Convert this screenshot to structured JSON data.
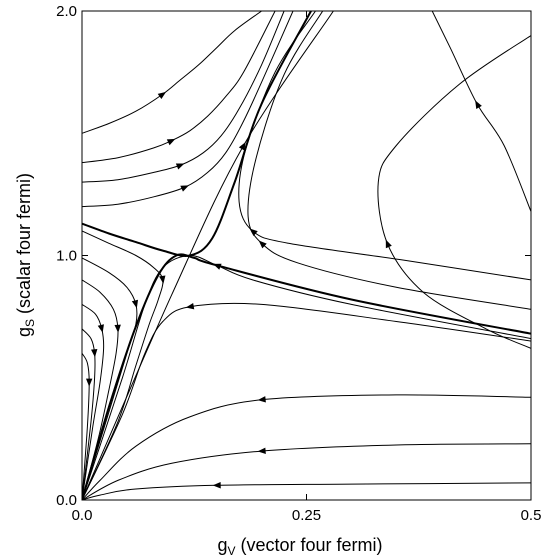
{
  "chart_data": {
    "type": "line",
    "xlabel_main": "g",
    "xlabel_sub": "V",
    "xlabel_rest": " (vector four fermi)",
    "ylabel_main": "g",
    "ylabel_sub": "S",
    "ylabel_rest": " (scalar four fermi)",
    "xlim": [
      0,
      0.5
    ],
    "ylim": [
      0,
      2.0
    ],
    "xticks": [
      {
        "value": 0,
        "label": "0.0"
      },
      {
        "value": 0.25,
        "label": "0.25"
      },
      {
        "value": 0.5,
        "label": "0.5"
      }
    ],
    "yticks": [
      {
        "value": 0,
        "label": "0.0"
      },
      {
        "value": 1.0,
        "label": "1.0"
      },
      {
        "value": 2.0,
        "label": "2.0"
      }
    ],
    "grid": false,
    "series": [
      {
        "x": [
          0.5,
          0.3,
          0.15,
          0.06,
          0.02,
          0.0
        ],
        "y": [
          0.07,
          0.065,
          0.06,
          0.045,
          0.02,
          0.0
        ]
      },
      {
        "x": [
          0.5,
          0.35,
          0.2,
          0.1,
          0.04,
          0.0
        ],
        "y": [
          0.23,
          0.225,
          0.2,
          0.15,
          0.08,
          0.0
        ]
      },
      {
        "x": [
          0.5,
          0.35,
          0.2,
          0.12,
          0.06,
          0.02,
          0.0
        ],
        "y": [
          0.42,
          0.43,
          0.41,
          0.34,
          0.22,
          0.08,
          0.0
        ]
      },
      {
        "x": [
          0.5,
          0.35,
          0.2,
          0.12,
          0.09,
          0.07,
          0.045,
          0.0
        ],
        "y": [
          0.65,
          0.73,
          0.8,
          0.79,
          0.73,
          0.6,
          0.35,
          0.0
        ]
      },
      {
        "x": [
          0.5,
          0.3,
          0.19,
          0.15,
          0.12,
          0.09,
          0.07,
          0.045,
          0.0
        ],
        "y": [
          0.66,
          0.8,
          0.9,
          0.96,
          1.0,
          0.95,
          0.8,
          0.5,
          0.0
        ],
        "arrow": [
          0.2,
          0.92
        ]
      },
      {
        "x": [
          0.0,
          0.03,
          0.06,
          0.09,
          0.12,
          0.145,
          0.17,
          0.2,
          0.255
        ],
        "y": [
          1.13,
          1.09,
          1.055,
          1.02,
          1.0,
          1.07,
          1.3,
          1.62,
          2.0
        ],
        "separatrix": true
      },
      {
        "x": [
          0.5,
          0.3,
          0.15,
          0.125,
          0.105,
          0.085,
          0.06,
          0.03,
          0.0
        ],
        "y": [
          0.68,
          0.82,
          0.96,
          0.99,
          1.0,
          0.92,
          0.71,
          0.38,
          0.0
        ],
        "separatrix": true
      },
      {
        "x": [
          0.0,
          0.1,
          0.18,
          0.28
        ],
        "y": [
          0.0,
          0.84,
          1.45,
          2.0
        ]
      },
      {
        "x": [
          0.5,
          0.36,
          0.23,
          0.19,
          0.175,
          0.182,
          0.215,
          0.26
        ],
        "y": [
          0.9,
          0.98,
          1.05,
          1.1,
          1.22,
          1.43,
          1.75,
          2.0
        ]
      },
      {
        "x": [
          0.5,
          0.35,
          0.24,
          0.2,
          0.185,
          0.194,
          0.225,
          0.268
        ],
        "y": [
          0.78,
          0.87,
          0.97,
          1.05,
          1.16,
          1.4,
          1.74,
          2.0
        ]
      },
      {
        "x": [
          0.5,
          0.45,
          0.38,
          0.34,
          0.33,
          0.35,
          0.42,
          0.5
        ],
        "y": [
          0.62,
          0.7,
          0.85,
          1.05,
          1.3,
          1.45,
          1.7,
          1.9
        ]
      },
      {
        "x": [
          0.5,
          0.47,
          0.44,
          0.41,
          0.39
        ],
        "y": [
          1.18,
          1.45,
          1.62,
          1.85,
          2.0
        ]
      },
      {
        "x": [
          0.0,
          0.03,
          0.06,
          0.09,
          0.11,
          0.13,
          0.15,
          0.17,
          0.2
        ],
        "y": [
          1.5,
          1.54,
          1.59,
          1.66,
          1.72,
          1.78,
          1.85,
          1.92,
          2.0
        ]
      },
      {
        "x": [
          0.0,
          0.04,
          0.08,
          0.1,
          0.12,
          0.14,
          0.16,
          0.18,
          0.215
        ],
        "y": [
          1.38,
          1.4,
          1.44,
          1.47,
          1.51,
          1.57,
          1.65,
          1.75,
          2.0
        ]
      },
      {
        "x": [
          0.0,
          0.04,
          0.08,
          0.11,
          0.135,
          0.155,
          0.175,
          0.2,
          0.225
        ],
        "y": [
          1.3,
          1.31,
          1.34,
          1.37,
          1.42,
          1.49,
          1.6,
          1.78,
          2.0
        ]
      },
      {
        "x": [
          0.0,
          0.04,
          0.08,
          0.115,
          0.14,
          0.16,
          0.18,
          0.205,
          0.235
        ],
        "y": [
          1.2,
          1.21,
          1.24,
          1.28,
          1.34,
          1.42,
          1.55,
          1.75,
          2.0
        ]
      },
      {
        "x": [
          0.0,
          0.03,
          0.06,
          0.08,
          0.09,
          0.085,
          0.075,
          0.06,
          0.04,
          0.0
        ],
        "y": [
          1.1,
          1.05,
          1.0,
          0.95,
          0.9,
          0.82,
          0.72,
          0.55,
          0.32,
          0.0
        ]
      },
      {
        "x": [
          0.0,
          0.03,
          0.05,
          0.06,
          0.06,
          0.05,
          0.035,
          0.0
        ],
        "y": [
          0.99,
          0.93,
          0.87,
          0.8,
          0.72,
          0.6,
          0.42,
          0.0
        ]
      },
      {
        "x": [
          0.0,
          0.02,
          0.035,
          0.04,
          0.038,
          0.03,
          0.018,
          0.0
        ],
        "y": [
          0.9,
          0.85,
          0.78,
          0.7,
          0.6,
          0.45,
          0.25,
          0.0
        ]
      },
      {
        "x": [
          0.0,
          0.015,
          0.022,
          0.024,
          0.02,
          0.012,
          0.0
        ],
        "y": [
          0.8,
          0.76,
          0.7,
          0.62,
          0.48,
          0.3,
          0.0
        ]
      },
      {
        "x": [
          0.0,
          0.01,
          0.014,
          0.014,
          0.01,
          0.0
        ],
        "y": [
          0.7,
          0.66,
          0.6,
          0.5,
          0.32,
          0.0
        ]
      },
      {
        "x": [
          0.0,
          0.006,
          0.008,
          0.006,
          0.0
        ],
        "y": [
          0.6,
          0.56,
          0.48,
          0.3,
          0.0
        ]
      }
    ]
  }
}
